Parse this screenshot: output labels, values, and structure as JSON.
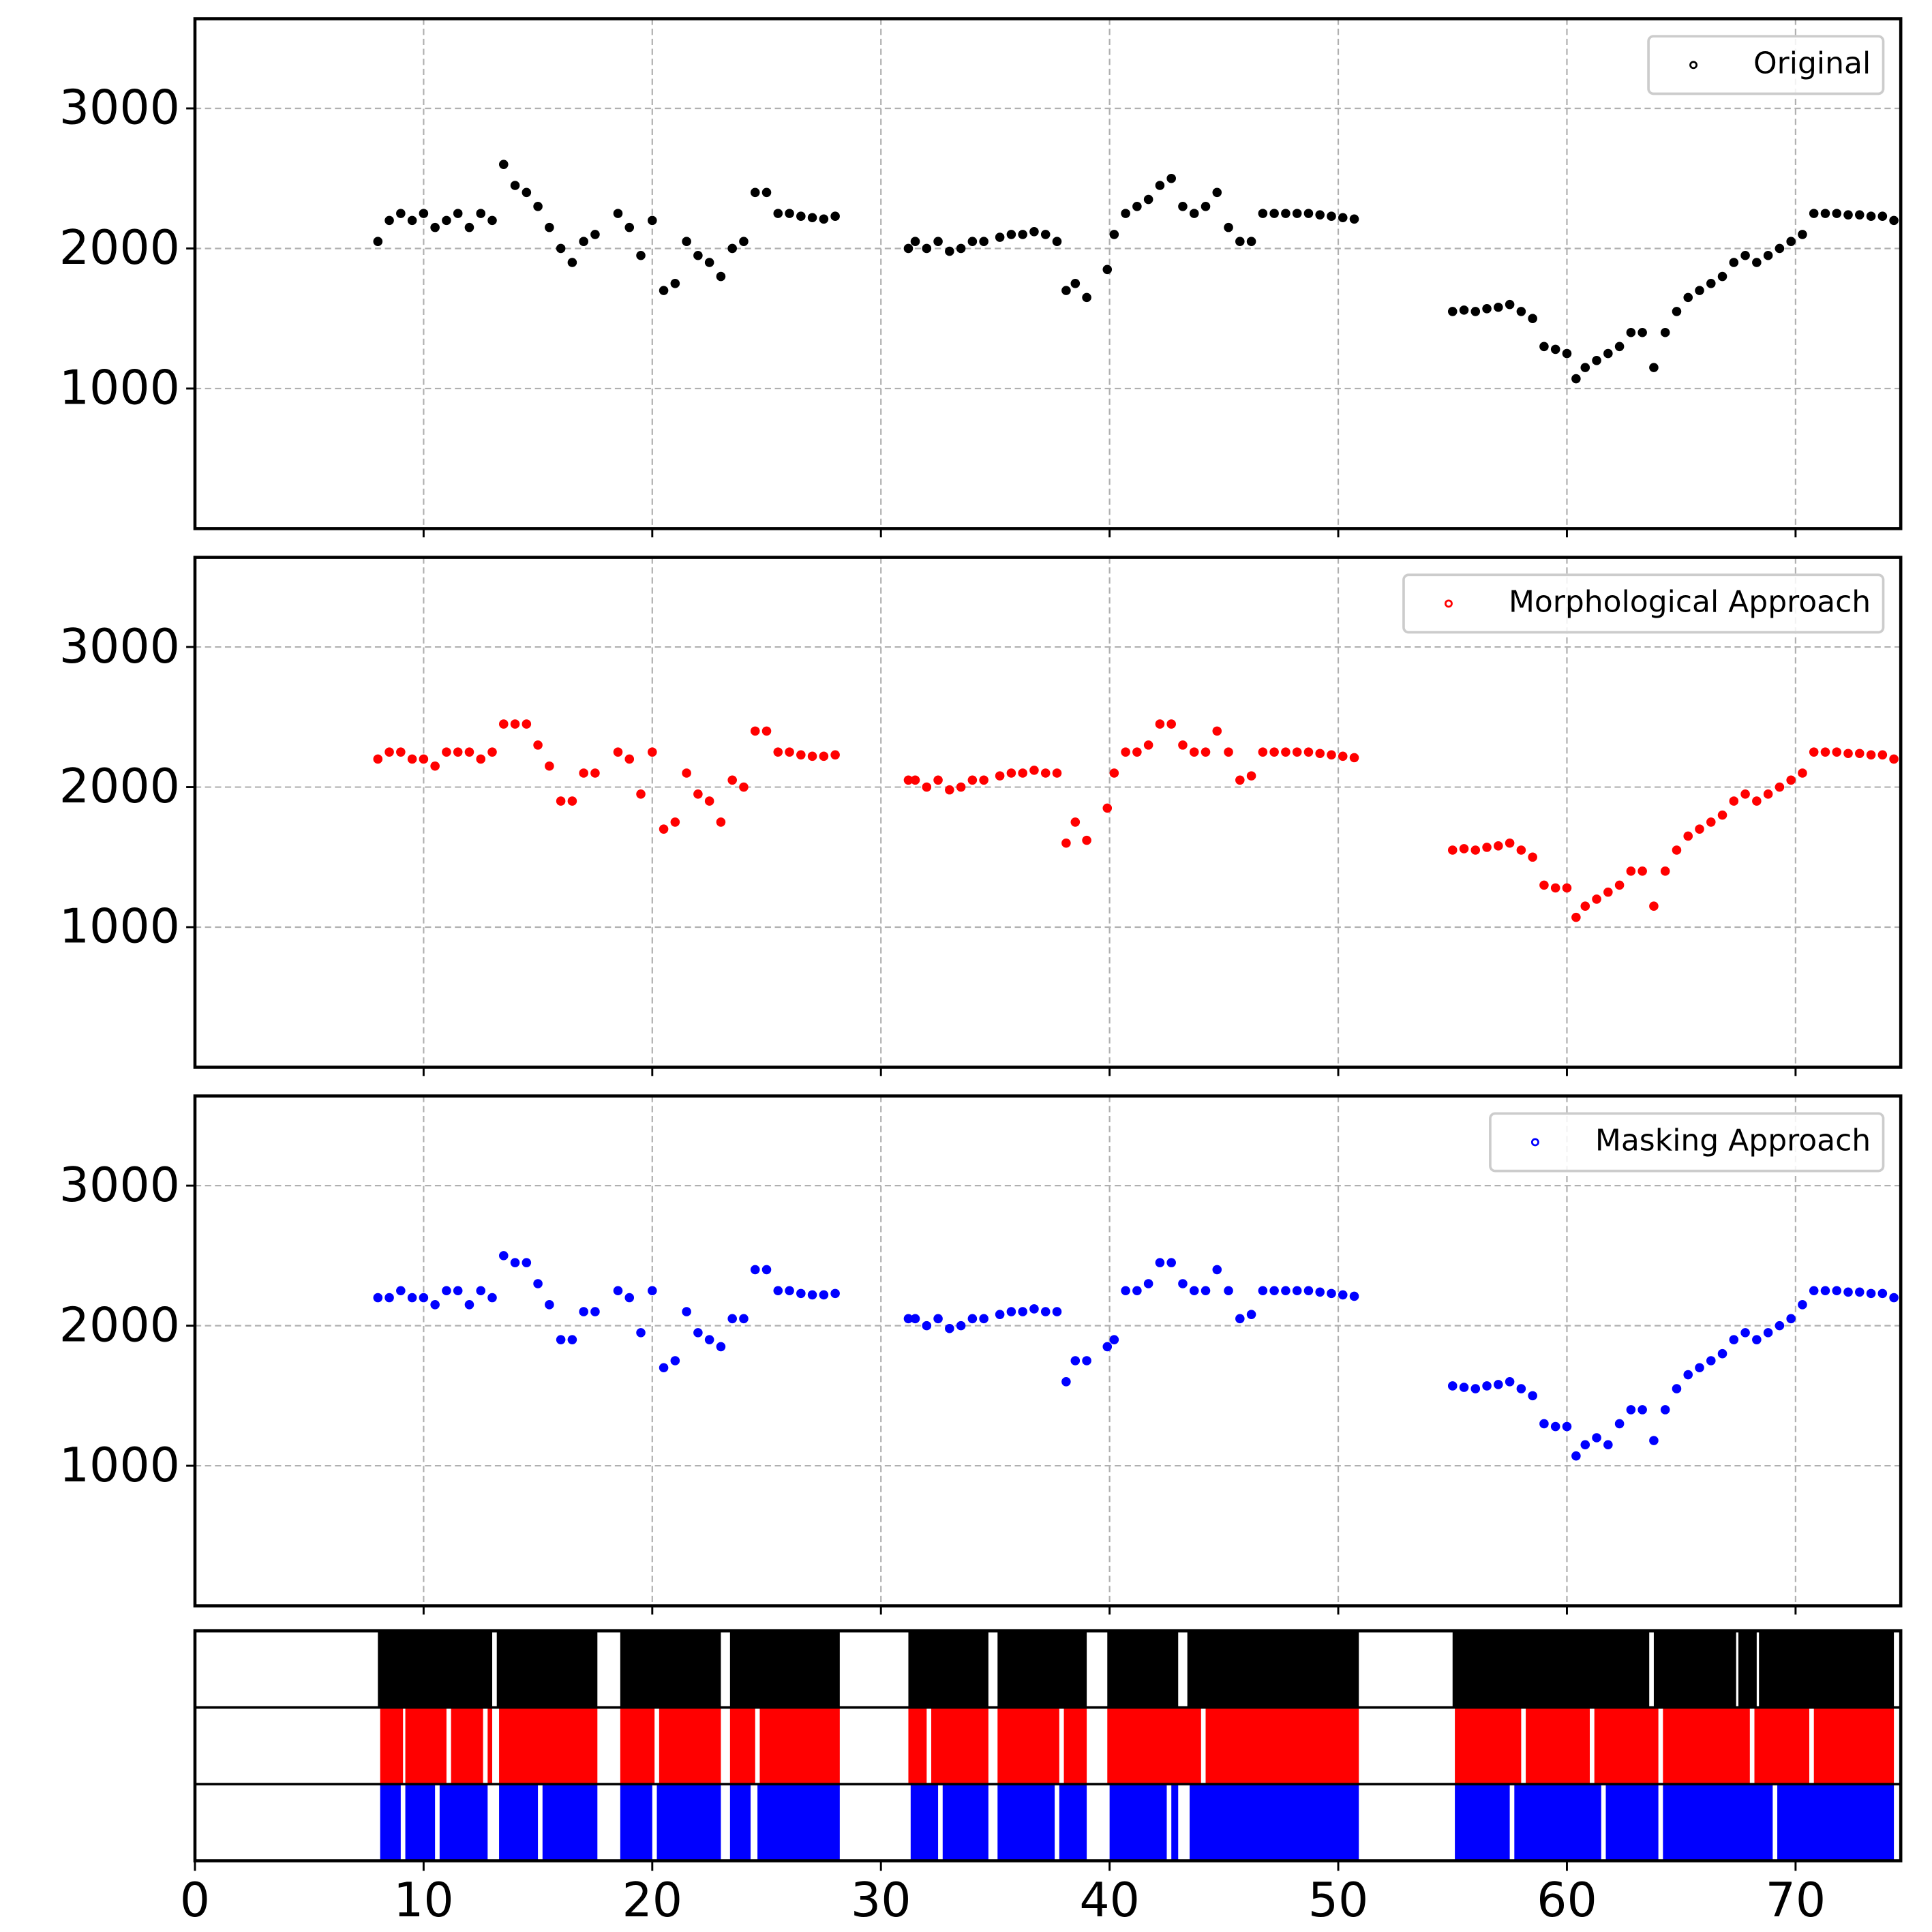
{
  "chart_data": [
    {
      "type": "scatter",
      "xlim": [
        0,
        74.6
      ],
      "ylim": [
        0,
        3640
      ],
      "xticks": [
        10,
        20,
        30,
        40,
        50,
        60,
        70
      ],
      "yticks": [
        1000,
        2000,
        3000
      ],
      "grid": true,
      "legend": "upper right",
      "series": [
        {
          "name": "Original",
          "color": "#000000",
          "x": [
            8.0,
            8.5,
            9.0,
            9.5,
            10.0,
            10.5,
            11.0,
            11.5,
            12.0,
            12.5,
            13.0,
            13.5,
            14.0,
            14.5,
            15.0,
            15.5,
            16.0,
            16.5,
            17.0,
            17.5,
            18.5,
            19.0,
            19.5,
            20.0,
            20.5,
            21.0,
            21.5,
            22.0,
            22.5,
            23.0,
            23.5,
            24.0,
            24.5,
            25.0,
            25.5,
            26.0,
            26.5,
            27.0,
            27.5,
            28.0,
            31.2,
            31.5,
            32.0,
            32.5,
            33.0,
            33.5,
            34.0,
            34.5,
            35.2,
            35.7,
            36.2,
            36.7,
            37.2,
            37.7,
            38.1,
            38.5,
            39.0,
            39.9,
            40.2,
            40.7,
            41.2,
            41.7,
            42.2,
            42.7,
            43.2,
            43.7,
            44.2,
            44.7,
            45.2,
            45.7,
            46.2,
            46.7,
            47.2,
            47.7,
            48.2,
            48.7,
            49.2,
            49.7,
            50.2,
            50.7,
            55.0,
            55.5,
            56.0,
            56.5,
            57.0,
            57.5,
            58.0,
            58.5,
            59.0,
            59.5,
            60.0,
            60.4,
            60.8,
            61.3,
            61.8,
            62.3,
            62.8,
            63.3,
            63.8,
            64.3,
            64.8,
            65.3,
            65.8,
            66.3,
            66.8,
            67.3,
            67.8,
            68.3,
            68.8,
            69.3,
            69.8,
            70.3,
            70.8,
            71.3,
            71.8,
            72.3,
            72.8,
            73.3,
            73.8,
            74.3
          ],
          "values": [
            2050,
            2200,
            2250,
            2200,
            2250,
            2150,
            2200,
            2250,
            2150,
            2250,
            2200,
            2600,
            2450,
            2400,
            2300,
            2150,
            2000,
            1900,
            2050,
            2100,
            2250,
            2150,
            1950,
            2200,
            1700,
            1750,
            2050,
            1950,
            1900,
            1800,
            2000,
            2050,
            2400,
            2400,
            2250,
            2250,
            2230,
            2220,
            2210,
            2230,
            2000,
            2050,
            2000,
            2050,
            1980,
            2000,
            2050,
            2050,
            2080,
            2100,
            2100,
            2120,
            2100,
            2050,
            1700,
            1750,
            1650,
            1850,
            2100,
            2250,
            2300,
            2350,
            2450,
            2500,
            2300,
            2250,
            2300,
            2400,
            2150,
            2050,
            2050,
            2250,
            2250,
            2250,
            2250,
            2250,
            2240,
            2230,
            2220,
            2210,
            1550,
            1560,
            1550,
            1570,
            1580,
            1600,
            1550,
            1500,
            1300,
            1280,
            1250,
            1070,
            1150,
            1200,
            1250,
            1300,
            1400,
            1400,
            1150,
            1400,
            1550,
            1650,
            1700,
            1750,
            1800,
            1900,
            1950,
            1900,
            1950,
            2000,
            2050,
            2100,
            2250,
            2250,
            2250,
            2240,
            2240,
            2230,
            2230,
            2200
          ]
        }
      ]
    },
    {
      "type": "scatter",
      "xlim": [
        0,
        74.6
      ],
      "ylim": [
        0,
        3640
      ],
      "xticks": [
        10,
        20,
        30,
        40,
        50,
        60,
        70
      ],
      "yticks": [
        1000,
        2000,
        3000
      ],
      "grid": true,
      "legend": "upper right",
      "series": [
        {
          "name": "Morphological Approach",
          "color": "#ff0000",
          "x": [
            8.0,
            8.5,
            9.0,
            9.5,
            10.0,
            10.5,
            11.0,
            11.5,
            12.0,
            12.5,
            13.0,
            13.5,
            14.0,
            14.5,
            15.0,
            15.5,
            16.0,
            16.5,
            17.0,
            17.5,
            18.5,
            19.0,
            19.5,
            20.0,
            20.5,
            21.0,
            21.5,
            22.0,
            22.5,
            23.0,
            23.5,
            24.0,
            24.5,
            25.0,
            25.5,
            26.0,
            26.5,
            27.0,
            27.5,
            28.0,
            31.2,
            31.5,
            32.0,
            32.5,
            33.0,
            33.5,
            34.0,
            34.5,
            35.2,
            35.7,
            36.2,
            36.7,
            37.2,
            37.7,
            38.1,
            38.5,
            39.0,
            39.9,
            40.2,
            40.7,
            41.2,
            41.7,
            42.2,
            42.7,
            43.2,
            43.7,
            44.2,
            44.7,
            45.2,
            45.7,
            46.2,
            46.7,
            47.2,
            47.7,
            48.2,
            48.7,
            49.2,
            49.7,
            50.2,
            50.7,
            55.0,
            55.5,
            56.0,
            56.5,
            57.0,
            57.5,
            58.0,
            58.5,
            59.0,
            59.5,
            60.0,
            60.4,
            60.8,
            61.3,
            61.8,
            62.3,
            62.8,
            63.3,
            63.8,
            64.3,
            64.8,
            65.3,
            65.8,
            66.3,
            66.8,
            67.3,
            67.8,
            68.3,
            68.8,
            69.3,
            69.8,
            70.3,
            70.8,
            71.3,
            71.8,
            72.3,
            72.8,
            73.3,
            73.8,
            74.3
          ],
          "values": [
            2200,
            2250,
            2250,
            2200,
            2200,
            2150,
            2250,
            2250,
            2250,
            2200,
            2250,
            2450,
            2450,
            2450,
            2300,
            2150,
            1900,
            1900,
            2100,
            2100,
            2250,
            2200,
            1950,
            2250,
            1700,
            1750,
            2100,
            1950,
            1900,
            1750,
            2050,
            2000,
            2400,
            2400,
            2250,
            2250,
            2230,
            2220,
            2220,
            2230,
            2050,
            2050,
            2000,
            2050,
            1980,
            2000,
            2050,
            2050,
            2080,
            2100,
            2100,
            2120,
            2100,
            2100,
            1600,
            1750,
            1620,
            1850,
            2100,
            2250,
            2250,
            2300,
            2450,
            2450,
            2300,
            2250,
            2250,
            2400,
            2250,
            2050,
            2080,
            2250,
            2250,
            2250,
            2250,
            2250,
            2240,
            2230,
            2220,
            2210,
            1550,
            1560,
            1550,
            1570,
            1580,
            1600,
            1550,
            1500,
            1300,
            1280,
            1280,
            1070,
            1150,
            1200,
            1250,
            1300,
            1400,
            1400,
            1150,
            1400,
            1550,
            1650,
            1700,
            1750,
            1800,
            1900,
            1950,
            1900,
            1950,
            2000,
            2050,
            2100,
            2250,
            2250,
            2250,
            2240,
            2240,
            2230,
            2230,
            2200
          ]
        }
      ]
    },
    {
      "type": "scatter",
      "xlim": [
        0,
        74.6
      ],
      "ylim": [
        0,
        3640
      ],
      "xticks": [
        10,
        20,
        30,
        40,
        50,
        60,
        70
      ],
      "yticks": [
        1000,
        2000,
        3000
      ],
      "grid": true,
      "legend": "upper right",
      "series": [
        {
          "name": "Masking Approach",
          "color": "#0000ff",
          "x": [
            8.0,
            8.5,
            9.0,
            9.5,
            10.0,
            10.5,
            11.0,
            11.5,
            12.0,
            12.5,
            13.0,
            13.5,
            14.0,
            14.5,
            15.0,
            15.5,
            16.0,
            16.5,
            17.0,
            17.5,
            18.5,
            19.0,
            19.5,
            20.0,
            20.5,
            21.0,
            21.5,
            22.0,
            22.5,
            23.0,
            23.5,
            24.0,
            24.5,
            25.0,
            25.5,
            26.0,
            26.5,
            27.0,
            27.5,
            28.0,
            31.2,
            31.5,
            32.0,
            32.5,
            33.0,
            33.5,
            34.0,
            34.5,
            35.2,
            35.7,
            36.2,
            36.7,
            37.2,
            37.7,
            38.1,
            38.5,
            39.0,
            39.9,
            40.2,
            40.7,
            41.2,
            41.7,
            42.2,
            42.7,
            43.2,
            43.7,
            44.2,
            44.7,
            45.2,
            45.7,
            46.2,
            46.7,
            47.2,
            47.7,
            48.2,
            48.7,
            49.2,
            49.7,
            50.2,
            50.7,
            55.0,
            55.5,
            56.0,
            56.5,
            57.0,
            57.5,
            58.0,
            58.5,
            59.0,
            59.5,
            60.0,
            60.4,
            60.8,
            61.3,
            61.8,
            62.3,
            62.8,
            63.3,
            63.8,
            64.3,
            64.8,
            65.3,
            65.8,
            66.3,
            66.8,
            67.3,
            67.8,
            68.3,
            68.8,
            69.3,
            69.8,
            70.3,
            70.8,
            71.3,
            71.8,
            72.3,
            72.8,
            73.3,
            73.8,
            74.3
          ],
          "values": [
            2200,
            2200,
            2250,
            2200,
            2200,
            2150,
            2250,
            2250,
            2150,
            2250,
            2200,
            2500,
            2450,
            2450,
            2300,
            2150,
            1900,
            1900,
            2100,
            2100,
            2250,
            2200,
            1950,
            2250,
            1700,
            1750,
            2100,
            1950,
            1900,
            1850,
            2050,
            2050,
            2400,
            2400,
            2250,
            2250,
            2230,
            2220,
            2220,
            2230,
            2050,
            2050,
            2000,
            2050,
            1980,
            2000,
            2050,
            2050,
            2080,
            2100,
            2100,
            2120,
            2100,
            2100,
            1600,
            1750,
            1750,
            1850,
            1900,
            2250,
            2250,
            2300,
            2450,
            2450,
            2300,
            2250,
            2250,
            2400,
            2250,
            2050,
            2080,
            2250,
            2250,
            2250,
            2250,
            2250,
            2240,
            2230,
            2220,
            2210,
            1570,
            1560,
            1550,
            1570,
            1580,
            1600,
            1550,
            1500,
            1300,
            1280,
            1280,
            1070,
            1150,
            1200,
            1150,
            1300,
            1400,
            1400,
            1180,
            1400,
            1550,
            1650,
            1700,
            1750,
            1800,
            1900,
            1950,
            1900,
            1950,
            2000,
            2050,
            2150,
            2250,
            2250,
            2250,
            2240,
            2240,
            2230,
            2230,
            2200
          ]
        }
      ]
    },
    {
      "type": "span",
      "xlim": [
        0,
        74.6
      ],
      "xticks": [
        0,
        10,
        20,
        30,
        40,
        50,
        60,
        70
      ],
      "series": [
        {
          "color": "#000000",
          "intervals": [
            [
              8.0,
              13.0
            ],
            [
              13.2,
              17.6
            ],
            [
              18.6,
              23.0
            ],
            [
              23.4,
              28.2
            ],
            [
              31.2,
              34.7
            ],
            [
              35.1,
              39.0
            ],
            [
              39.9,
              43.0
            ],
            [
              43.4,
              50.9
            ],
            [
              55.0,
              63.6
            ],
            [
              63.8,
              67.4
            ],
            [
              67.5,
              68.3
            ],
            [
              68.4,
              74.3
            ]
          ]
        },
        {
          "color": "#ff0000",
          "intervals": [
            [
              8.1,
              9.1
            ],
            [
              9.2,
              11.0
            ],
            [
              11.2,
              12.6
            ],
            [
              12.8,
              13.0
            ],
            [
              13.3,
              17.6
            ],
            [
              18.6,
              20.1
            ],
            [
              20.3,
              23.0
            ],
            [
              23.4,
              24.5
            ],
            [
              24.7,
              28.2
            ],
            [
              31.2,
              32.0
            ],
            [
              32.2,
              34.7
            ],
            [
              35.1,
              37.8
            ],
            [
              38.0,
              39.0
            ],
            [
              39.9,
              44.0
            ],
            [
              44.2,
              50.9
            ],
            [
              55.1,
              58.0
            ],
            [
              58.2,
              61.0
            ],
            [
              61.2,
              64.0
            ],
            [
              64.2,
              68.0
            ],
            [
              68.2,
              70.6
            ],
            [
              70.8,
              74.3
            ]
          ]
        },
        {
          "color": "#0000ff",
          "intervals": [
            [
              8.1,
              9.0
            ],
            [
              9.2,
              10.5
            ],
            [
              10.7,
              12.8
            ],
            [
              13.3,
              15.0
            ],
            [
              15.2,
              17.6
            ],
            [
              18.6,
              20.0
            ],
            [
              20.2,
              23.0
            ],
            [
              23.4,
              24.3
            ],
            [
              24.6,
              28.2
            ],
            [
              31.3,
              32.5
            ],
            [
              32.7,
              34.7
            ],
            [
              35.1,
              37.6
            ],
            [
              37.8,
              39.0
            ],
            [
              40.0,
              42.5
            ],
            [
              42.7,
              43.0
            ],
            [
              43.5,
              50.9
            ],
            [
              55.1,
              57.5
            ],
            [
              57.7,
              61.5
            ],
            [
              61.7,
              64.0
            ],
            [
              64.2,
              69.0
            ],
            [
              69.2,
              74.3
            ]
          ]
        }
      ]
    }
  ]
}
